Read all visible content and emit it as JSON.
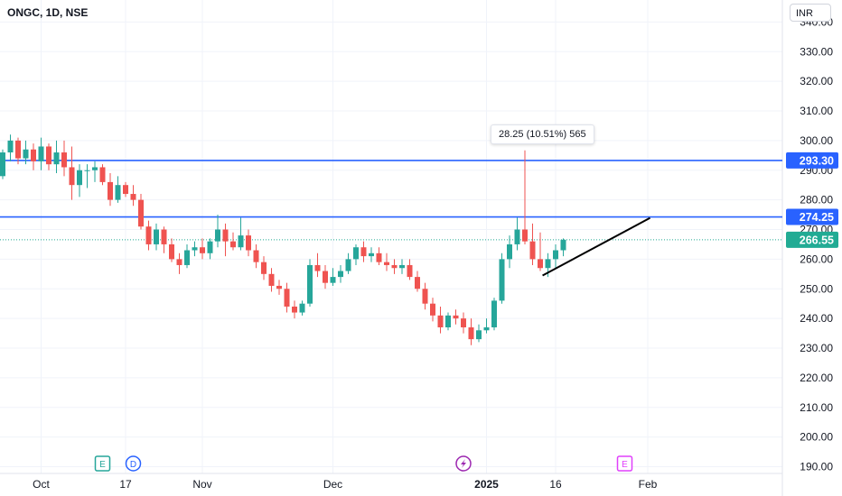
{
  "header": {
    "symbol": "ONGC, 1D, NSE",
    "currency": "INR"
  },
  "measure_label": "28.25 (10.51%) 565",
  "colors": {
    "up": "#26a69a",
    "down": "#ef5350",
    "level_line": "#2962ff",
    "current": "#22ab94",
    "trendline": "#000000"
  },
  "event_markers": [
    {
      "letter": "E",
      "icon": "earnings-icon",
      "color": "#26a69a",
      "date_index": 13
    },
    {
      "letter": "D",
      "icon": "dividend-icon",
      "color": "#2962ff",
      "date_index": 17
    },
    {
      "letter": "",
      "icon": "news-flash-icon",
      "color": "#9c27b0",
      "date_index": 60
    },
    {
      "letter": "E",
      "icon": "earnings-icon",
      "color": "#e040fb",
      "date_index": 81
    }
  ],
  "chart_data": {
    "type": "candlestick",
    "title": "ONGC, 1D, NSE",
    "y_ticks": [
      190,
      200,
      210,
      220,
      230,
      240,
      250,
      260,
      270,
      280,
      290,
      300,
      310,
      320,
      330,
      340
    ],
    "y_tick_labels": [
      "190.00",
      "200.00",
      "210.00",
      "220.00",
      "230.00",
      "240.00",
      "250.00",
      "260.00",
      "270.00",
      "280.00",
      "290.00",
      "300.00",
      "310.00",
      "320.00",
      "330.00",
      "340.00"
    ],
    "x_ticks": [
      {
        "label": "Oct",
        "index": 5,
        "bold": false
      },
      {
        "label": "17",
        "index": 16,
        "bold": false
      },
      {
        "label": "Nov",
        "index": 26,
        "bold": false
      },
      {
        "label": "Dec",
        "index": 43,
        "bold": false
      },
      {
        "label": "2025",
        "index": 63,
        "bold": true
      },
      {
        "label": "16",
        "index": 72,
        "bold": false
      },
      {
        "label": "Feb",
        "index": 84,
        "bold": false
      }
    ],
    "horizontal_levels": [
      {
        "value": 293.3,
        "label": "293.30"
      },
      {
        "value": 274.25,
        "label": "274.25"
      }
    ],
    "current_price": {
      "value": 266.55,
      "label": "266.55"
    },
    "trendline": {
      "from": {
        "index": 70.3,
        "value": 254.5
      },
      "to": {
        "index": 84.3,
        "value": 273.9
      }
    },
    "candles": [
      [
        288,
        297,
        287,
        296
      ],
      [
        296,
        302,
        293,
        300
      ],
      [
        300,
        301,
        292,
        294
      ],
      [
        294,
        300,
        292,
        297
      ],
      [
        297,
        299,
        290,
        293
      ],
      [
        293,
        301,
        290,
        298
      ],
      [
        298,
        299,
        290,
        292
      ],
      [
        292,
        300,
        289,
        296
      ],
      [
        296,
        300,
        288,
        291
      ],
      [
        291,
        298,
        280,
        285
      ],
      [
        285,
        292,
        281,
        290
      ],
      [
        290,
        292,
        284,
        290
      ],
      [
        290,
        293,
        286,
        291
      ],
      [
        291,
        292,
        285,
        286
      ],
      [
        286,
        289,
        278,
        280
      ],
      [
        280,
        288,
        279,
        285
      ],
      [
        285,
        286,
        281,
        282
      ],
      [
        282,
        285,
        278,
        280
      ],
      [
        280,
        282,
        270,
        271
      ],
      [
        271,
        273,
        263,
        265
      ],
      [
        265,
        272,
        263,
        270
      ],
      [
        270,
        271,
        262,
        265
      ],
      [
        265,
        267,
        259,
        260
      ],
      [
        260,
        262,
        255,
        258
      ],
      [
        258,
        265,
        257,
        263
      ],
      [
        263,
        266,
        261,
        264
      ],
      [
        264,
        267,
        260,
        262
      ],
      [
        262,
        267,
        260,
        266
      ],
      [
        266,
        275,
        264,
        270
      ],
      [
        270,
        272,
        261,
        266
      ],
      [
        266,
        269,
        263,
        264
      ],
      [
        264,
        274,
        263,
        268
      ],
      [
        268,
        270,
        261,
        263
      ],
      [
        263,
        265,
        257,
        259
      ],
      [
        259,
        261,
        253,
        255
      ],
      [
        255,
        257,
        249,
        251
      ],
      [
        251,
        253,
        248,
        250
      ],
      [
        250,
        252,
        242,
        244
      ],
      [
        244,
        246,
        240,
        242
      ],
      [
        242,
        246,
        241,
        245
      ],
      [
        245,
        260,
        244,
        258
      ],
      [
        258,
        262,
        254,
        256
      ],
      [
        256,
        258,
        250,
        252
      ],
      [
        252,
        257,
        251,
        254
      ],
      [
        254,
        258,
        252,
        256
      ],
      [
        256,
        262,
        255,
        260
      ],
      [
        260,
        265,
        258,
        264
      ],
      [
        264,
        266,
        259,
        261
      ],
      [
        261,
        264,
        259,
        262
      ],
      [
        262,
        264,
        258,
        259
      ],
      [
        259,
        262,
        256,
        258
      ],
      [
        258,
        260,
        255,
        257
      ],
      [
        257,
        260,
        255,
        258
      ],
      [
        258,
        260,
        253,
        254
      ],
      [
        254,
        256,
        249,
        250
      ],
      [
        250,
        252,
        243,
        245
      ],
      [
        245,
        247,
        239,
        241
      ],
      [
        241,
        244,
        235,
        237
      ],
      [
        237,
        242,
        236,
        241
      ],
      [
        241,
        243,
        238,
        240
      ],
      [
        240,
        242,
        235,
        237
      ],
      [
        237,
        240,
        231,
        233
      ],
      [
        233,
        238,
        232,
        236
      ],
      [
        236,
        240,
        235,
        237
      ],
      [
        237,
        247,
        236,
        246
      ],
      [
        246,
        262,
        245,
        260
      ],
      [
        260,
        268,
        257,
        265
      ],
      [
        265,
        274,
        263,
        270
      ],
      [
        270,
        296.7,
        265,
        266
      ],
      [
        266,
        272,
        258,
        260
      ],
      [
        260,
        269,
        256,
        257
      ],
      [
        257,
        262,
        254,
        260
      ],
      [
        260,
        265,
        257,
        263
      ],
      [
        263,
        267,
        261,
        266.55
      ]
    ]
  }
}
